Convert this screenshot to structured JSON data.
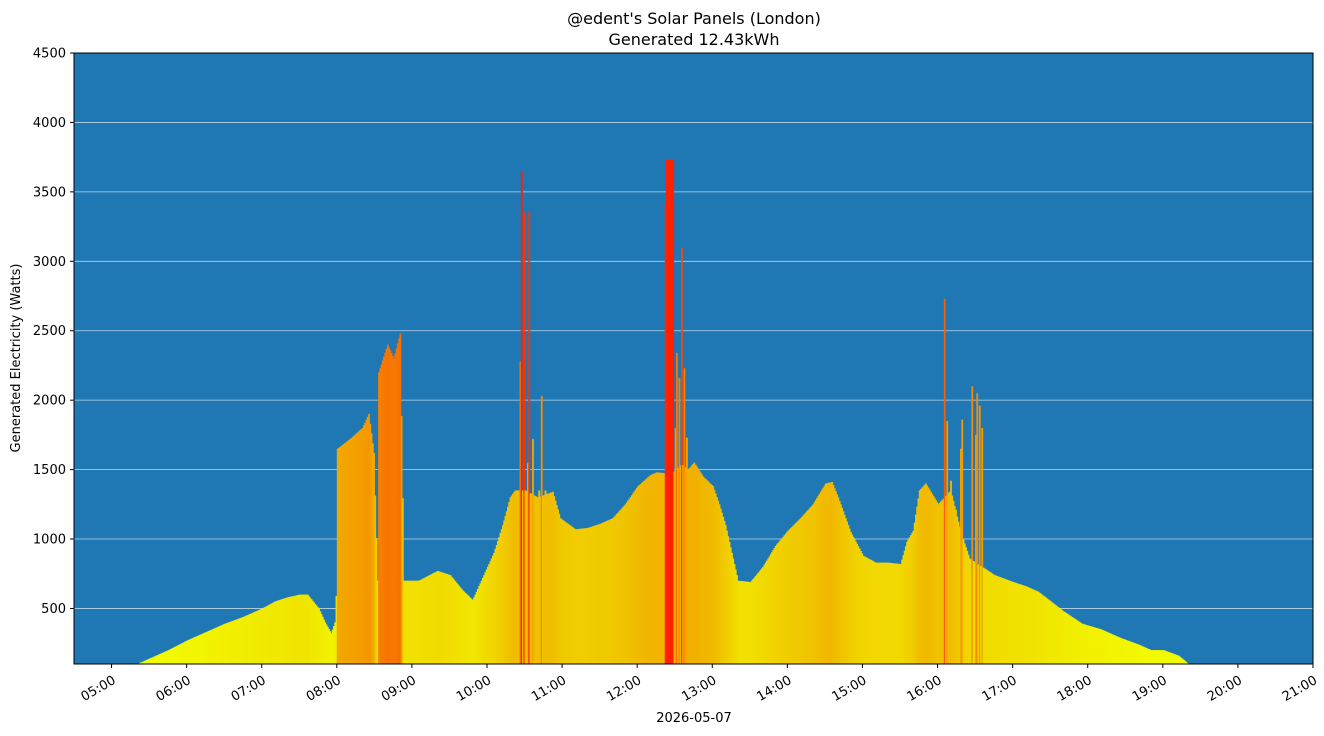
{
  "chart_data": {
    "type": "bar",
    "title": "@edent's Solar Panels (London)",
    "subtitle": "Generated 12.43kWh",
    "xlabel": "2026-05-07",
    "ylabel": "Generated Electricity (Watts)",
    "xlim": [
      "04:30",
      "21:00"
    ],
    "ylim": [
      100,
      4500
    ],
    "yticks": [
      500,
      1000,
      1500,
      2000,
      2500,
      3000,
      3500,
      4000,
      4500
    ],
    "xticks": [
      "05:00",
      "06:00",
      "07:00",
      "08:00",
      "09:00",
      "10:00",
      "11:00",
      "12:00",
      "13:00",
      "14:00",
      "15:00",
      "16:00",
      "17:00",
      "18:00",
      "19:00",
      "20:00",
      "21:00"
    ],
    "grid": "horizontal",
    "background_color": "#1f77b4",
    "color_scale": {
      "low": "#f2ff00",
      "mid": "#f0c000",
      "high": "#ff2000"
    },
    "profile": [
      {
        "t": "05:20",
        "w": 100
      },
      {
        "t": "05:45",
        "w": 200
      },
      {
        "t": "06:00",
        "w": 270
      },
      {
        "t": "06:15",
        "w": 330
      },
      {
        "t": "06:30",
        "w": 390
      },
      {
        "t": "06:45",
        "w": 440
      },
      {
        "t": "07:00",
        "w": 500
      },
      {
        "t": "07:10",
        "w": 550
      },
      {
        "t": "07:20",
        "w": 580
      },
      {
        "t": "07:30",
        "w": 600
      },
      {
        "t": "07:36",
        "w": 600
      },
      {
        "t": "07:45",
        "w": 500
      },
      {
        "t": "07:50",
        "w": 400
      },
      {
        "t": "07:55",
        "w": 320
      },
      {
        "t": "07:58",
        "w": 400
      },
      {
        "t": "07:59",
        "w": 590
      },
      {
        "t": "08:00",
        "w": 1650
      },
      {
        "t": "08:10",
        "w": 1720
      },
      {
        "t": "08:20",
        "w": 1800
      },
      {
        "t": "08:25",
        "w": 1900
      },
      {
        "t": "08:29",
        "w": 1620
      },
      {
        "t": "08:32",
        "w": 700
      },
      {
        "t": "08:33",
        "w": 2200
      },
      {
        "t": "08:40",
        "w": 2400
      },
      {
        "t": "08:45",
        "w": 2300
      },
      {
        "t": "08:50",
        "w": 2480
      },
      {
        "t": "08:53",
        "w": 700
      },
      {
        "t": "09:05",
        "w": 700
      },
      {
        "t": "09:20",
        "w": 770
      },
      {
        "t": "09:30",
        "w": 740
      },
      {
        "t": "09:40",
        "w": 630
      },
      {
        "t": "09:48",
        "w": 560
      },
      {
        "t": "09:55",
        "w": 700
      },
      {
        "t": "10:05",
        "w": 900
      },
      {
        "t": "10:12",
        "w": 1100
      },
      {
        "t": "10:18",
        "w": 1300
      },
      {
        "t": "10:22",
        "w": 1350
      },
      {
        "t": "10:30",
        "w": 1350
      },
      {
        "t": "10:40",
        "w": 1300
      },
      {
        "t": "10:52",
        "w": 1340
      },
      {
        "t": "10:58",
        "w": 1150
      },
      {
        "t": "11:10",
        "w": 1070
      },
      {
        "t": "11:20",
        "w": 1080
      },
      {
        "t": "11:30",
        "w": 1110
      },
      {
        "t": "11:40",
        "w": 1150
      },
      {
        "t": "11:50",
        "w": 1250
      },
      {
        "t": "12:00",
        "w": 1380
      },
      {
        "t": "12:10",
        "w": 1460
      },
      {
        "t": "12:15",
        "w": 1480
      },
      {
        "t": "12:27",
        "w": 1470
      },
      {
        "t": "12:35",
        "w": 1540
      },
      {
        "t": "12:40",
        "w": 1500
      },
      {
        "t": "12:45",
        "w": 1550
      },
      {
        "t": "12:52",
        "w": 1450
      },
      {
        "t": "13:00",
        "w": 1380
      },
      {
        "t": "13:05",
        "w": 1250
      },
      {
        "t": "13:10",
        "w": 1100
      },
      {
        "t": "13:15",
        "w": 900
      },
      {
        "t": "13:20",
        "w": 700
      },
      {
        "t": "13:30",
        "w": 690
      },
      {
        "t": "13:40",
        "w": 800
      },
      {
        "t": "13:50",
        "w": 950
      },
      {
        "t": "14:00",
        "w": 1060
      },
      {
        "t": "14:10",
        "w": 1150
      },
      {
        "t": "14:20",
        "w": 1250
      },
      {
        "t": "14:30",
        "w": 1400
      },
      {
        "t": "14:35",
        "w": 1410
      },
      {
        "t": "14:40",
        "w": 1300
      },
      {
        "t": "14:50",
        "w": 1050
      },
      {
        "t": "15:00",
        "w": 880
      },
      {
        "t": "15:10",
        "w": 830
      },
      {
        "t": "15:20",
        "w": 830
      },
      {
        "t": "15:30",
        "w": 820
      },
      {
        "t": "15:35",
        "w": 980
      },
      {
        "t": "15:40",
        "w": 1060
      },
      {
        "t": "15:45",
        "w": 1350
      },
      {
        "t": "15:50",
        "w": 1400
      },
      {
        "t": "16:00",
        "w": 1250
      },
      {
        "t": "16:10",
        "w": 1350
      },
      {
        "t": "16:18",
        "w": 1050
      },
      {
        "t": "16:25",
        "w": 860
      },
      {
        "t": "16:35",
        "w": 800
      },
      {
        "t": "16:45",
        "w": 740
      },
      {
        "t": "17:00",
        "w": 690
      },
      {
        "t": "17:10",
        "w": 660
      },
      {
        "t": "17:20",
        "w": 620
      },
      {
        "t": "17:30",
        "w": 550
      },
      {
        "t": "17:40",
        "w": 480
      },
      {
        "t": "17:55",
        "w": 390
      },
      {
        "t": "18:10",
        "w": 350
      },
      {
        "t": "18:25",
        "w": 290
      },
      {
        "t": "18:40",
        "w": 240
      },
      {
        "t": "18:50",
        "w": 200
      },
      {
        "t": "19:00",
        "w": 200
      },
      {
        "t": "19:12",
        "w": 160
      },
      {
        "t": "19:20",
        "w": 100
      }
    ],
    "spikes": [
      {
        "t": "10:26",
        "w": 2280
      },
      {
        "t": "10:27",
        "w": 3650
      },
      {
        "t": "10:29",
        "w": 3350
      },
      {
        "t": "10:32",
        "w": 1550
      },
      {
        "t": "10:33",
        "w": 3360
      },
      {
        "t": "10:36",
        "w": 1720
      },
      {
        "t": "10:39",
        "w": 1220
      },
      {
        "t": "10:41",
        "w": 1350
      },
      {
        "t": "10:43",
        "w": 2030
      },
      {
        "t": "10:46",
        "w": 1350
      },
      {
        "t": "12:22",
        "w": 3420
      },
      {
        "t": "12:23",
        "w": 3730
      },
      {
        "t": "12:24",
        "w": 3730
      },
      {
        "t": "12:25",
        "w": 3730
      },
      {
        "t": "12:26",
        "w": 3730
      },
      {
        "t": "12:27",
        "w": 3730
      },
      {
        "t": "12:28",
        "w": 3730
      },
      {
        "t": "12:30",
        "w": 1800
      },
      {
        "t": "12:31",
        "w": 2340
      },
      {
        "t": "12:33",
        "w": 2160
      },
      {
        "t": "12:35",
        "w": 3100
      },
      {
        "t": "12:37",
        "w": 2230
      },
      {
        "t": "12:39",
        "w": 1730
      },
      {
        "t": "16:05",
        "w": 2730
      },
      {
        "t": "16:07",
        "w": 1850
      },
      {
        "t": "16:10",
        "w": 1420
      },
      {
        "t": "16:14",
        "w": 1210
      },
      {
        "t": "16:18",
        "w": 1650
      },
      {
        "t": "16:19",
        "w": 1860
      },
      {
        "t": "16:27",
        "w": 2100
      },
      {
        "t": "16:30",
        "w": 1750
      },
      {
        "t": "16:31",
        "w": 2050
      },
      {
        "t": "16:33",
        "w": 1960
      },
      {
        "t": "16:35",
        "w": 1800
      }
    ]
  }
}
